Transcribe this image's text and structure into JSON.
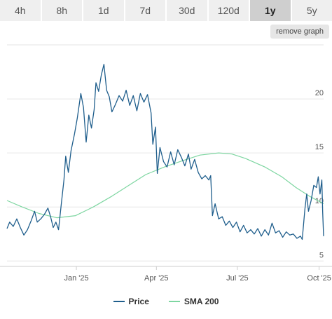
{
  "tabs": [
    {
      "label": "4h",
      "active": false
    },
    {
      "label": "8h",
      "active": false
    },
    {
      "label": "1d",
      "active": false
    },
    {
      "label": "7d",
      "active": false
    },
    {
      "label": "30d",
      "active": false
    },
    {
      "label": "120d",
      "active": false
    },
    {
      "label": "1y",
      "active": true
    },
    {
      "label": "5y",
      "active": false
    }
  ],
  "remove_graph_label": "remove graph",
  "colors": {
    "price": "#1f5e8c",
    "sma": "#7ed6a1",
    "grid": "#e6e6e6",
    "axis": "#cccccc",
    "active_tab": "#cfcfcf",
    "tab": "#efefef"
  },
  "chart_data": {
    "type": "line",
    "x_axis": {
      "type": "date",
      "range": [
        "2024-10-15",
        "2025-10-06"
      ],
      "ticks": [
        {
          "label": "Jan '25",
          "date": "2025-01-01"
        },
        {
          "label": "Apr '25",
          "date": "2025-04-01"
        },
        {
          "label": "Jul '25",
          "date": "2025-07-01"
        },
        {
          "label": "Oct '25",
          "date": "2025-10-01"
        }
      ]
    },
    "y_axis": {
      "position": "right",
      "range": [
        4.5,
        25
      ],
      "ticks": [
        5,
        10,
        15,
        20
      ]
    },
    "grid": true,
    "legend_position": "bottom-center",
    "series": [
      {
        "name": "Price",
        "color": "#1f5e8c",
        "points": [
          [
            "2024-10-15",
            8.0
          ],
          [
            "2024-10-18",
            8.6
          ],
          [
            "2024-10-22",
            8.2
          ],
          [
            "2024-10-26",
            8.9
          ],
          [
            "2024-10-30",
            8.1
          ],
          [
            "2024-11-03",
            7.4
          ],
          [
            "2024-11-07",
            7.9
          ],
          [
            "2024-11-11",
            8.7
          ],
          [
            "2024-11-15",
            9.6
          ],
          [
            "2024-11-18",
            8.6
          ],
          [
            "2024-11-22",
            8.9
          ],
          [
            "2024-11-26",
            9.3
          ],
          [
            "2024-11-30",
            9.9
          ],
          [
            "2024-12-03",
            9.1
          ],
          [
            "2024-12-06",
            8.1
          ],
          [
            "2024-12-09",
            8.6
          ],
          [
            "2024-12-12",
            7.9
          ],
          [
            "2024-12-15",
            10.2
          ],
          [
            "2024-12-18",
            12.5
          ],
          [
            "2024-12-20",
            14.7
          ],
          [
            "2024-12-23",
            13.2
          ],
          [
            "2024-12-26",
            15.2
          ],
          [
            "2024-12-30",
            16.8
          ],
          [
            "2025-01-02",
            18.2
          ],
          [
            "2025-01-06",
            20.5
          ],
          [
            "2025-01-09",
            19.2
          ],
          [
            "2025-01-12",
            16.0
          ],
          [
            "2025-01-15",
            18.5
          ],
          [
            "2025-01-18",
            17.3
          ],
          [
            "2025-01-21",
            19.0
          ],
          [
            "2025-01-23",
            21.5
          ],
          [
            "2025-01-26",
            20.7
          ],
          [
            "2025-01-29",
            22.2
          ],
          [
            "2025-02-01",
            23.2
          ],
          [
            "2025-02-04",
            20.8
          ],
          [
            "2025-02-07",
            20.2
          ],
          [
            "2025-02-10",
            18.8
          ],
          [
            "2025-02-14",
            19.5
          ],
          [
            "2025-02-18",
            20.3
          ],
          [
            "2025-02-22",
            19.8
          ],
          [
            "2025-02-26",
            20.8
          ],
          [
            "2025-03-02",
            19.4
          ],
          [
            "2025-03-06",
            20.3
          ],
          [
            "2025-03-10",
            18.9
          ],
          [
            "2025-03-14",
            20.5
          ],
          [
            "2025-03-18",
            19.7
          ],
          [
            "2025-03-22",
            20.4
          ],
          [
            "2025-03-26",
            18.7
          ],
          [
            "2025-03-28",
            15.8
          ],
          [
            "2025-03-31",
            17.4
          ],
          [
            "2025-04-02",
            13.1
          ],
          [
            "2025-04-05",
            15.5
          ],
          [
            "2025-04-09",
            14.2
          ],
          [
            "2025-04-13",
            13.7
          ],
          [
            "2025-04-17",
            15.1
          ],
          [
            "2025-04-21",
            13.9
          ],
          [
            "2025-04-25",
            15.3
          ],
          [
            "2025-04-29",
            14.6
          ],
          [
            "2025-05-03",
            13.8
          ],
          [
            "2025-05-07",
            14.9
          ],
          [
            "2025-05-10",
            13.5
          ],
          [
            "2025-05-14",
            14.4
          ],
          [
            "2025-05-18",
            13.2
          ],
          [
            "2025-05-22",
            12.6
          ],
          [
            "2025-05-26",
            12.9
          ],
          [
            "2025-05-30",
            12.5
          ],
          [
            "2025-06-01",
            12.9
          ],
          [
            "2025-06-03",
            9.2
          ],
          [
            "2025-06-06",
            10.3
          ],
          [
            "2025-06-10",
            8.9
          ],
          [
            "2025-06-14",
            9.1
          ],
          [
            "2025-06-18",
            8.3
          ],
          [
            "2025-06-22",
            8.7
          ],
          [
            "2025-06-26",
            8.1
          ],
          [
            "2025-06-30",
            8.6
          ],
          [
            "2025-07-04",
            7.7
          ],
          [
            "2025-07-08",
            8.3
          ],
          [
            "2025-07-12",
            7.6
          ],
          [
            "2025-07-16",
            7.9
          ],
          [
            "2025-07-20",
            7.5
          ],
          [
            "2025-07-24",
            8.0
          ],
          [
            "2025-07-28",
            7.3
          ],
          [
            "2025-08-01",
            7.9
          ],
          [
            "2025-08-05",
            7.4
          ],
          [
            "2025-08-09",
            8.5
          ],
          [
            "2025-08-13",
            7.6
          ],
          [
            "2025-08-17",
            7.8
          ],
          [
            "2025-08-21",
            7.2
          ],
          [
            "2025-08-25",
            7.7
          ],
          [
            "2025-08-29",
            7.4
          ],
          [
            "2025-09-02",
            7.5
          ],
          [
            "2025-09-06",
            7.1
          ],
          [
            "2025-09-10",
            7.3
          ],
          [
            "2025-09-12",
            7.0
          ],
          [
            "2025-09-15",
            9.8
          ],
          [
            "2025-09-17",
            11.2
          ],
          [
            "2025-09-19",
            9.6
          ],
          [
            "2025-09-22",
            10.6
          ],
          [
            "2025-09-25",
            12.0
          ],
          [
            "2025-09-28",
            11.8
          ],
          [
            "2025-09-30",
            12.8
          ],
          [
            "2025-10-02",
            11.2
          ],
          [
            "2025-10-04",
            12.5
          ],
          [
            "2025-10-05",
            9.5
          ],
          [
            "2025-10-06",
            7.3
          ]
        ]
      },
      {
        "name": "SMA 200",
        "color": "#7ed6a1",
        "points": [
          [
            "2024-10-15",
            10.6
          ],
          [
            "2024-11-01",
            10.0
          ],
          [
            "2024-11-20",
            9.4
          ],
          [
            "2024-12-10",
            9.0
          ],
          [
            "2024-12-31",
            9.2
          ],
          [
            "2025-01-20",
            10.0
          ],
          [
            "2025-02-10",
            11.0
          ],
          [
            "2025-03-01",
            12.0
          ],
          [
            "2025-03-20",
            13.0
          ],
          [
            "2025-04-10",
            13.7
          ],
          [
            "2025-05-01",
            14.3
          ],
          [
            "2025-05-20",
            14.8
          ],
          [
            "2025-06-10",
            15.0
          ],
          [
            "2025-06-25",
            14.9
          ],
          [
            "2025-07-10",
            14.5
          ],
          [
            "2025-08-01",
            13.7
          ],
          [
            "2025-08-20",
            12.8
          ],
          [
            "2025-09-05",
            11.8
          ],
          [
            "2025-09-20",
            11.0
          ],
          [
            "2025-10-06",
            10.3
          ]
        ]
      }
    ]
  }
}
